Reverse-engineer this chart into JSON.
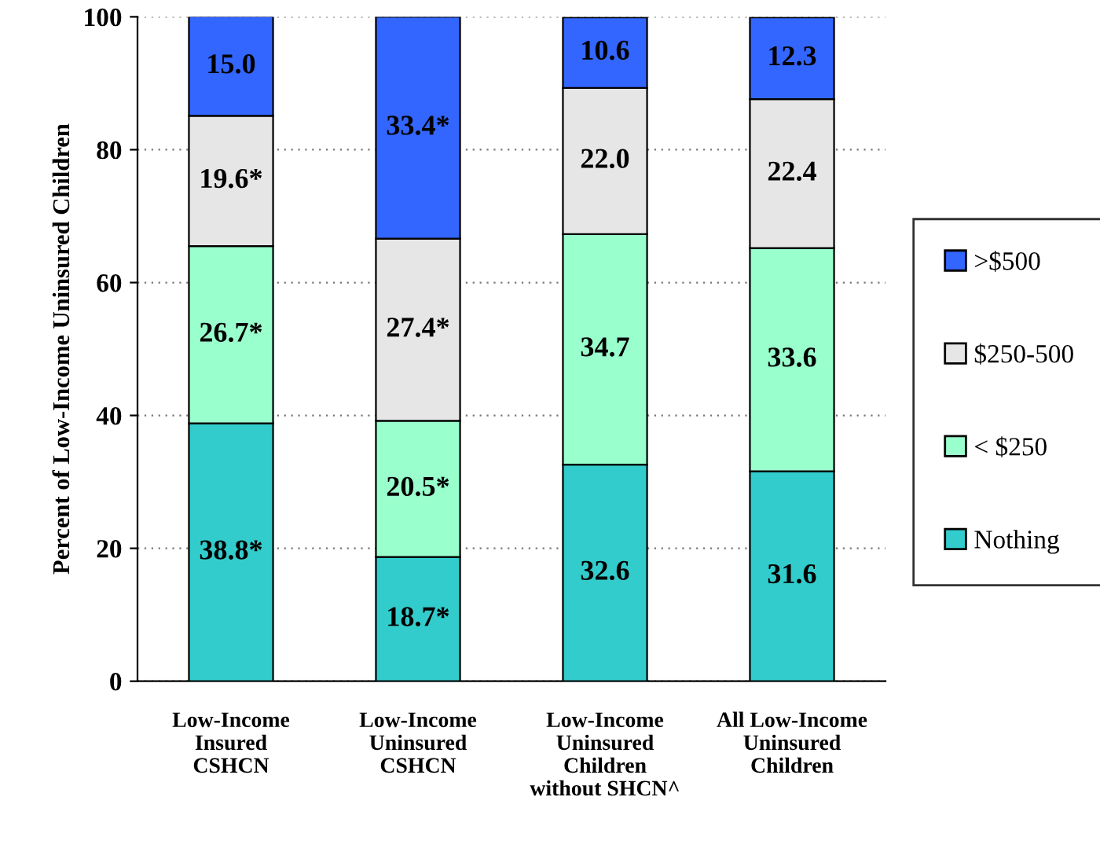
{
  "chart_data": {
    "type": "bar",
    "stacked": true,
    "ylabel": "Percent of Low-Income Uninsured Children",
    "categories": [
      "Low-Income\nInsured\nCSHCN",
      "Low-Income\nUninsured\nCSHCN",
      "Low-Income\nUninsured\nChildren\nwithout SHCN^",
      "All Low-Income\nUninsured\nChildren"
    ],
    "series": [
      {
        "name": "Nothing",
        "color": "#33cccc",
        "values": [
          38.8,
          18.7,
          32.6,
          31.6
        ],
        "value_labels": [
          "38.8*",
          "18.7*",
          "32.6",
          "31.6"
        ]
      },
      {
        "name": "< $250",
        "color": "#99ffcc",
        "values": [
          26.7,
          20.5,
          34.7,
          33.6
        ],
        "value_labels": [
          "26.7*",
          "20.5*",
          "34.7",
          "33.6"
        ]
      },
      {
        "name": "$250-500",
        "color": "#e6e6e6",
        "values": [
          19.6,
          27.4,
          22.0,
          22.4
        ],
        "value_labels": [
          "19.6*",
          "27.4*",
          "22.0",
          "22.4"
        ]
      },
      {
        "name": ">$500",
        "color": "#3366ff",
        "values": [
          15.0,
          33.4,
          10.6,
          12.3
        ],
        "value_labels": [
          "15.0",
          "33.4*",
          "10.6",
          "12.3"
        ]
      }
    ],
    "ylim": [
      0,
      100
    ],
    "yticks": [
      0,
      20,
      40,
      60,
      80,
      100
    ],
    "grid": "y",
    "legend": "right"
  }
}
